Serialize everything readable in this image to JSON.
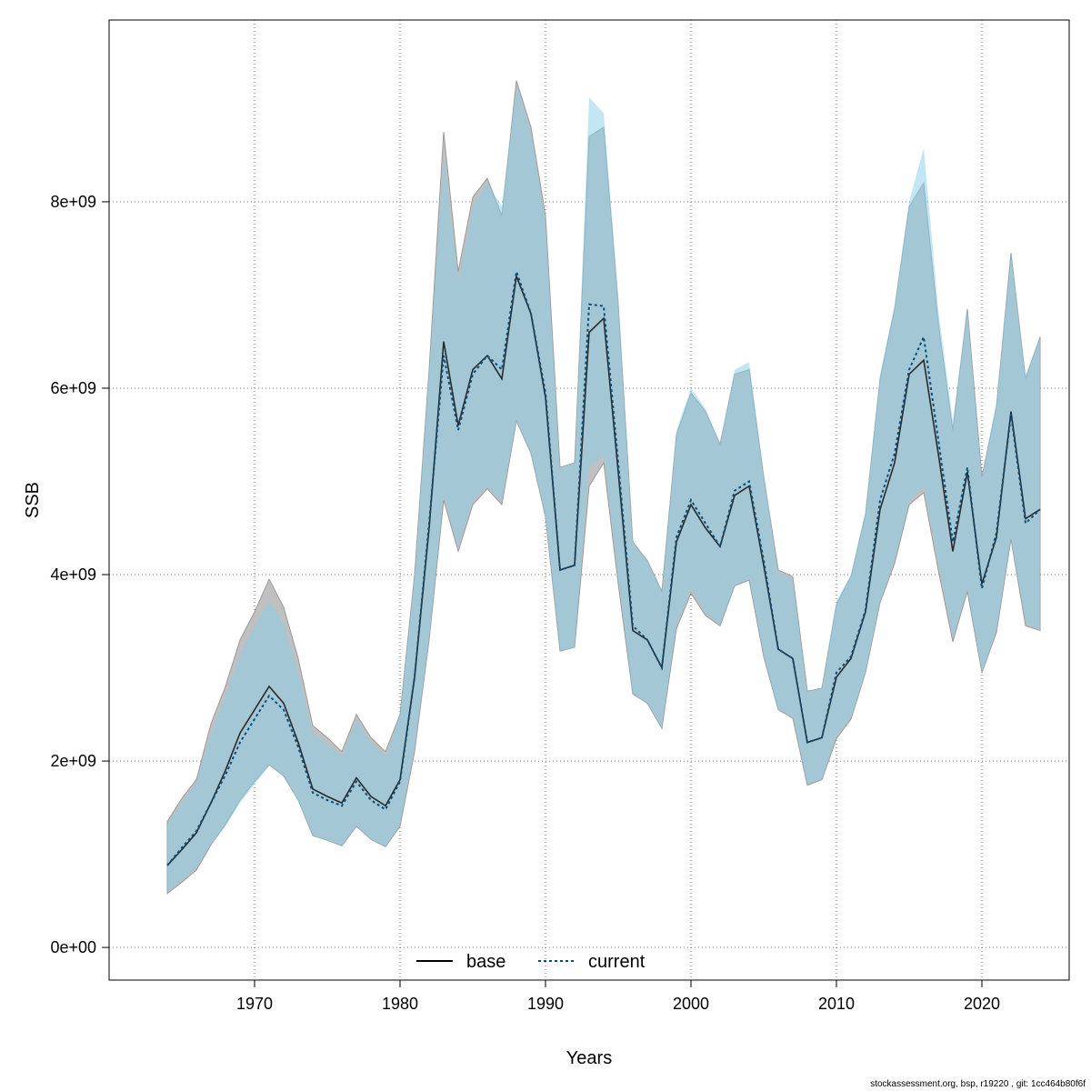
{
  "chart_data": {
    "type": "area",
    "xlabel": "Years",
    "ylabel": "SSB",
    "xlim": [
      1960,
      2026
    ],
    "ylim": [
      -350000000,
      9950000000
    ],
    "x_ticks": [
      1970,
      1980,
      1990,
      2000,
      2010,
      2020
    ],
    "y_ticks": [
      0,
      2000000000,
      4000000000,
      6000000000,
      8000000000
    ],
    "y_tick_labels": [
      "0e+00",
      "2e+09",
      "4e+09",
      "6e+09",
      "8e+09"
    ],
    "grid": true,
    "legend_position": "bottom",
    "x": [
      1964,
      1965,
      1966,
      1967,
      1968,
      1969,
      1970,
      1971,
      1972,
      1973,
      1974,
      1975,
      1976,
      1977,
      1978,
      1979,
      1980,
      1981,
      1982,
      1983,
      1984,
      1985,
      1986,
      1987,
      1988,
      1989,
      1990,
      1991,
      1992,
      1993,
      1994,
      1995,
      1996,
      1997,
      1998,
      1999,
      2000,
      2001,
      2002,
      2003,
      2004,
      2005,
      2006,
      2007,
      2008,
      2009,
      2010,
      2011,
      2012,
      2013,
      2014,
      2015,
      2016,
      2017,
      2018,
      2019,
      2020,
      2021,
      2022,
      2023,
      2024
    ],
    "series": [
      {
        "name": "base",
        "color": "#000000",
        "line_style": "solid",
        "band_color": "#bdbdbd",
        "values": [
          880000000.0,
          1050000000.0,
          1230000000.0,
          1550000000.0,
          1900000000.0,
          2300000000.0,
          2550000000.0,
          2800000000.0,
          2620000000.0,
          2200000000.0,
          1700000000.0,
          1620000000.0,
          1550000000.0,
          1820000000.0,
          1620000000.0,
          1520000000.0,
          1800000000.0,
          2900000000.0,
          4500000000.0,
          6500000000.0,
          5600000000.0,
          6200000000.0,
          6350000000.0,
          6100000000.0,
          7200000000.0,
          6800000000.0,
          5900000000.0,
          4050000000.0,
          4100000000.0,
          6600000000.0,
          6750000000.0,
          5100000000.0,
          3400000000.0,
          3300000000.0,
          3000000000.0,
          4350000000.0,
          4750000000.0,
          4500000000.0,
          4300000000.0,
          4850000000.0,
          4950000000.0,
          4100000000.0,
          3200000000.0,
          3100000000.0,
          2200000000.0,
          2250000000.0,
          2900000000.0,
          3100000000.0,
          3600000000.0,
          4700000000.0,
          5200000000.0,
          6150000000.0,
          6300000000.0,
          5300000000.0,
          4250000000.0,
          5100000000.0,
          3900000000.0,
          4400000000.0,
          5750000000.0,
          4600000000.0,
          4700000000.0
        ],
        "upper": [
          1350000000.0,
          1600000000.0,
          1800000000.0,
          2400000000.0,
          2800000000.0,
          3300000000.0,
          3600000000.0,
          3950000000.0,
          3650000000.0,
          3100000000.0,
          2380000000.0,
          2250000000.0,
          2100000000.0,
          2500000000.0,
          2250000000.0,
          2100000000.0,
          2500000000.0,
          4000000000.0,
          6200000000.0,
          8750000000.0,
          7250000000.0,
          8050000000.0,
          8250000000.0,
          7850000000.0,
          9300000000.0,
          8800000000.0,
          7850000000.0,
          5150000000.0,
          5200000000.0,
          8700000000.0,
          8800000000.0,
          6900000000.0,
          4350000000.0,
          4150000000.0,
          3820000000.0,
          5500000000.0,
          5950000000.0,
          5750000000.0,
          5400000000.0,
          6150000000.0,
          6200000000.0,
          5050000000.0,
          4050000000.0,
          3980000000.0,
          2750000000.0,
          2780000000.0,
          3680000000.0,
          3980000000.0,
          4650000000.0,
          6100000000.0,
          6850000000.0,
          7950000000.0,
          8200000000.0,
          6700000000.0,
          5550000000.0,
          6850000000.0,
          5050000000.0,
          5800000000.0,
          7450000000.0,
          6100000000.0,
          6550000000.0
        ],
        "lower": [
          580000000.0,
          700000000.0,
          830000000.0,
          1100000000.0,
          1320000000.0,
          1580000000.0,
          1780000000.0,
          1960000000.0,
          1840000000.0,
          1580000000.0,
          1200000000.0,
          1150000000.0,
          1090000000.0,
          1300000000.0,
          1160000000.0,
          1080000000.0,
          1300000000.0,
          2100000000.0,
          3300000000.0,
          4800000000.0,
          4250000000.0,
          4750000000.0,
          4920000000.0,
          4750000000.0,
          5650000000.0,
          5300000000.0,
          4620000000.0,
          3180000000.0,
          3220000000.0,
          4950000000.0,
          5200000000.0,
          3900000000.0,
          2720000000.0,
          2620000000.0,
          2350000000.0,
          3420000000.0,
          3800000000.0,
          3560000000.0,
          3450000000.0,
          3880000000.0,
          3940000000.0,
          3120000000.0,
          2550000000.0,
          2460000000.0,
          1740000000.0,
          1800000000.0,
          2240000000.0,
          2450000000.0,
          2950000000.0,
          3700000000.0,
          4120000000.0,
          4750000000.0,
          4880000000.0,
          4050000000.0,
          3280000000.0,
          3820000000.0,
          2950000000.0,
          3380000000.0,
          4380000000.0,
          3450000000.0,
          3400000000.0
        ]
      },
      {
        "name": "current",
        "color": "#1f77b4",
        "line_style": "dotted",
        "band_color": "#87ceeb",
        "values": [
          880000000.0,
          1070000000.0,
          1250000000.0,
          1550000000.0,
          1850000000.0,
          2200000000.0,
          2450000000.0,
          2700000000.0,
          2550000000.0,
          2150000000.0,
          1660000000.0,
          1580000000.0,
          1520000000.0,
          1780000000.0,
          1580000000.0,
          1480000000.0,
          1780000000.0,
          2900000000.0,
          4550000000.0,
          6350000000.0,
          5550000000.0,
          6150000000.0,
          6350000000.0,
          6200000000.0,
          7250000000.0,
          6800000000.0,
          5950000000.0,
          4050000000.0,
          4100000000.0,
          6900000000.0,
          6880000000.0,
          5200000000.0,
          3450000000.0,
          3300000000.0,
          3000000000.0,
          4400000000.0,
          4800000000.0,
          4550000000.0,
          4300000000.0,
          4900000000.0,
          5000000000.0,
          4150000000.0,
          3200000000.0,
          3100000000.0,
          2200000000.0,
          2250000000.0,
          2950000000.0,
          3120000000.0,
          3620000000.0,
          4800000000.0,
          5300000000.0,
          6200000000.0,
          6550000000.0,
          5450000000.0,
          4350000000.0,
          5150000000.0,
          3850000000.0,
          4450000000.0,
          5720000000.0,
          4550000000.0,
          4700000000.0
        ],
        "upper": [
          1320000000.0,
          1550000000.0,
          1780000000.0,
          2300000000.0,
          2700000000.0,
          3150000000.0,
          3450000000.0,
          3720000000.0,
          3480000000.0,
          2950000000.0,
          2300000000.0,
          2180000000.0,
          2050000000.0,
          2450000000.0,
          2200000000.0,
          2050000000.0,
          2500000000.0,
          4000000000.0,
          6200000000.0,
          8500000000.0,
          7150000000.0,
          7950000000.0,
          8200000000.0,
          7950000000.0,
          9250000000.0,
          8750000000.0,
          7800000000.0,
          5150000000.0,
          5200000000.0,
          9120000000.0,
          8950000000.0,
          7000000000.0,
          4350000000.0,
          4150000000.0,
          3820000000.0,
          5550000000.0,
          6000000000.0,
          5780000000.0,
          5400000000.0,
          6200000000.0,
          6280000000.0,
          5100000000.0,
          4020000000.0,
          3950000000.0,
          2750000000.0,
          2780000000.0,
          3720000000.0,
          4000000000.0,
          4680000000.0,
          6150000000.0,
          6900000000.0,
          8000000000.0,
          8580000000.0,
          6850000000.0,
          5650000000.0,
          6850000000.0,
          5050000000.0,
          5850000000.0,
          7450000000.0,
          6150000000.0,
          6550000000.0
        ],
        "lower": [
          600000000.0,
          720000000.0,
          850000000.0,
          1100000000.0,
          1300000000.0,
          1550000000.0,
          1750000000.0,
          1950000000.0,
          1840000000.0,
          1570000000.0,
          1200000000.0,
          1150000000.0,
          1090000000.0,
          1300000000.0,
          1160000000.0,
          1080000000.0,
          1320000000.0,
          2120000000.0,
          3300000000.0,
          4850000000.0,
          4280000000.0,
          4780000000.0,
          4950000000.0,
          4780000000.0,
          5650000000.0,
          5300000000.0,
          4620000000.0,
          3180000000.0,
          3220000000.0,
          5150000000.0,
          5280000000.0,
          3950000000.0,
          2720000000.0,
          2620000000.0,
          2350000000.0,
          3450000000.0,
          3850000000.0,
          3580000000.0,
          3470000000.0,
          3880000000.0,
          3950000000.0,
          3130000000.0,
          2550000000.0,
          2480000000.0,
          1750000000.0,
          1800000000.0,
          2260000000.0,
          2460000000.0,
          2950000000.0,
          3700000000.0,
          4150000000.0,
          4780000000.0,
          4950000000.0,
          4120000000.0,
          3320000000.0,
          3840000000.0,
          2950000000.0,
          3400000000.0,
          4380000000.0,
          3480000000.0,
          3400000000.0
        ]
      }
    ]
  },
  "footer": {
    "credit": "stockassessment.org, bsp, r19220 , git: 1cc464b80f6f"
  }
}
